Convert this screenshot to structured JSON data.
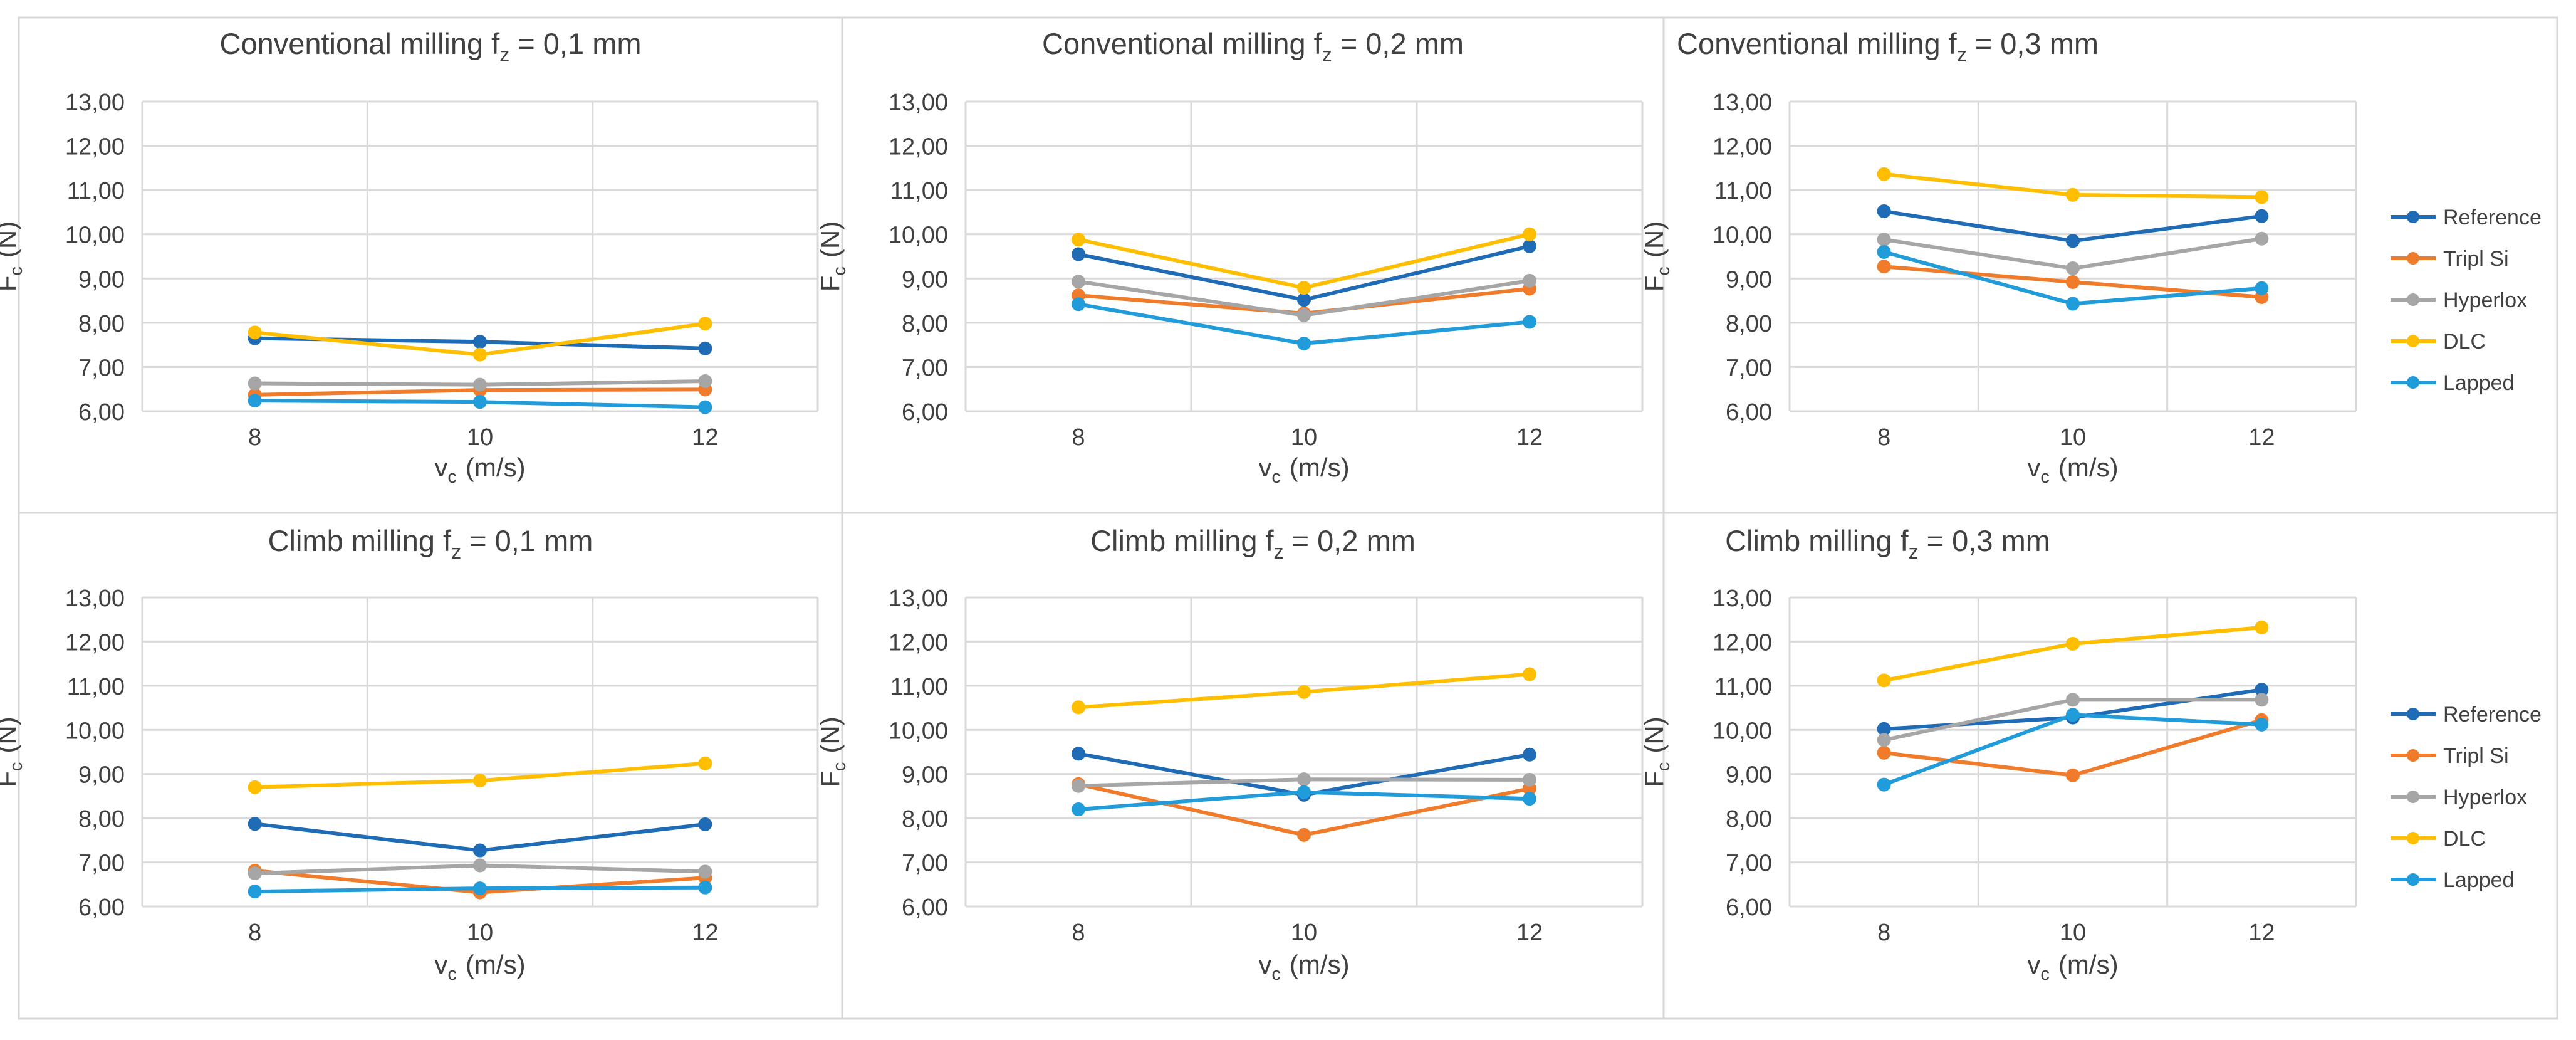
{
  "figure": {
    "legend_position": "right",
    "colors": {
      "Reference": "#1F6BB5",
      "Tripl Si": "#F07B2A",
      "Hyperlox": "#A6A6A6",
      "DLC": "#FFBE00",
      "Lapped": "#219CDA",
      "grid": "#D9D9D9",
      "panel_border": "#D6D6D6",
      "text": "#404040"
    }
  },
  "chart_data": [
    {
      "type": "line",
      "title_main": "Conventional milling f",
      "title_sub": "z",
      "title_value": " = 0,1 mm",
      "categories": [
        "8",
        "10",
        "12"
      ],
      "ylim": [
        6,
        13
      ],
      "yticks": [
        "6,00",
        "7,00",
        "8,00",
        "9,00",
        "10,00",
        "11,00",
        "12,00",
        "13,00"
      ],
      "ylabel_main": "F",
      "ylabel_sub": "c",
      "ylabel_unit": "(N)",
      "xlabel_main": "v",
      "xlabel_sub": "c",
      "xlabel_unit": "(m/s)",
      "legend": [],
      "series": [
        {
          "name": "Reference",
          "values": [
            7.65,
            7.57,
            7.42
          ]
        },
        {
          "name": "Tripl Si",
          "values": [
            6.37,
            6.48,
            6.49
          ]
        },
        {
          "name": "Hyperlox",
          "values": [
            6.63,
            6.6,
            6.68
          ]
        },
        {
          "name": "DLC",
          "values": [
            7.78,
            7.28,
            7.98
          ]
        },
        {
          "name": "Lapped",
          "values": [
            6.24,
            6.21,
            6.09
          ]
        }
      ]
    },
    {
      "type": "line",
      "title_main": "Conventional milling f",
      "title_sub": "z",
      "title_value": " = 0,2 mm",
      "categories": [
        "8",
        "10",
        "12"
      ],
      "ylim": [
        6,
        13
      ],
      "yticks": [
        "6,00",
        "7,00",
        "8,00",
        "9,00",
        "10,00",
        "11,00",
        "12,00",
        "13,00"
      ],
      "ylabel_main": "F",
      "ylabel_sub": "c",
      "ylabel_unit": "(N)",
      "xlabel_main": "v",
      "xlabel_sub": "c",
      "xlabel_unit": "(m/s)",
      "legend": [],
      "series": [
        {
          "name": "Reference",
          "values": [
            9.55,
            8.52,
            9.73
          ]
        },
        {
          "name": "Tripl Si",
          "values": [
            8.62,
            8.21,
            8.77
          ]
        },
        {
          "name": "Hyperlox",
          "values": [
            8.93,
            8.17,
            8.95
          ]
        },
        {
          "name": "DLC",
          "values": [
            9.88,
            8.79,
            10.0
          ]
        },
        {
          "name": "Lapped",
          "values": [
            8.42,
            7.53,
            8.02
          ]
        }
      ]
    },
    {
      "type": "line",
      "title_main": "Conventional milling f",
      "title_sub": "z",
      "title_value": " = 0,3 mm",
      "categories": [
        "8",
        "10",
        "12"
      ],
      "ylim": [
        6,
        13
      ],
      "yticks": [
        "6,00",
        "7,00",
        "8,00",
        "9,00",
        "10,00",
        "11,00",
        "12,00",
        "13,00"
      ],
      "ylabel_main": "F",
      "ylabel_sub": "c",
      "ylabel_unit": "(N)",
      "xlabel_main": "v",
      "xlabel_sub": "c",
      "xlabel_unit": "(m/s)",
      "legend": [
        "Reference",
        "Tripl Si",
        "Hyperlox",
        "DLC",
        "Lapped"
      ],
      "series": [
        {
          "name": "Reference",
          "values": [
            10.52,
            9.85,
            10.41
          ]
        },
        {
          "name": "Tripl Si",
          "values": [
            9.27,
            8.92,
            8.58
          ]
        },
        {
          "name": "Hyperlox",
          "values": [
            9.88,
            9.23,
            9.9
          ]
        },
        {
          "name": "DLC",
          "values": [
            11.36,
            10.89,
            10.84
          ]
        },
        {
          "name": "Lapped",
          "values": [
            9.6,
            8.43,
            8.78
          ]
        }
      ]
    },
    {
      "type": "line",
      "title_main": "Climb milling f",
      "title_sub": "z",
      "title_value": " = 0,1 mm",
      "categories": [
        "8",
        "10",
        "12"
      ],
      "ylim": [
        6,
        13
      ],
      "yticks": [
        "6,00",
        "7,00",
        "8,00",
        "9,00",
        "10,00",
        "11,00",
        "12,00",
        "13,00"
      ],
      "ylabel_main": "F",
      "ylabel_sub": "c",
      "ylabel_unit": "(N)",
      "xlabel_main": "v",
      "xlabel_sub": "c",
      "xlabel_unit": "(m/s)",
      "legend": [],
      "series": [
        {
          "name": "Reference",
          "values": [
            7.87,
            7.27,
            7.86
          ]
        },
        {
          "name": "Tripl Si",
          "values": [
            6.81,
            6.32,
            6.65
          ]
        },
        {
          "name": "Hyperlox",
          "values": [
            6.75,
            6.93,
            6.79
          ]
        },
        {
          "name": "DLC",
          "values": [
            8.7,
            8.85,
            9.24
          ]
        },
        {
          "name": "Lapped",
          "values": [
            6.34,
            6.41,
            6.43
          ]
        }
      ]
    },
    {
      "type": "line",
      "title_main": "Climb milling f",
      "title_sub": "z",
      "title_value": " = 0,2 mm",
      "categories": [
        "8",
        "10",
        "12"
      ],
      "ylim": [
        6,
        13
      ],
      "yticks": [
        "6,00",
        "7,00",
        "8,00",
        "9,00",
        "10,00",
        "11,00",
        "12,00",
        "13,00"
      ],
      "ylabel_main": "F",
      "ylabel_sub": "c",
      "ylabel_unit": "(N)",
      "xlabel_main": "v",
      "xlabel_sub": "c",
      "xlabel_unit": "(m/s)",
      "legend": [],
      "series": [
        {
          "name": "Reference",
          "values": [
            9.46,
            8.53,
            9.44
          ]
        },
        {
          "name": "Tripl Si",
          "values": [
            8.77,
            7.62,
            8.67
          ]
        },
        {
          "name": "Hyperlox",
          "values": [
            8.73,
            8.88,
            8.87
          ]
        },
        {
          "name": "DLC",
          "values": [
            10.51,
            10.86,
            11.26
          ]
        },
        {
          "name": "Lapped",
          "values": [
            8.2,
            8.59,
            8.44
          ]
        }
      ]
    },
    {
      "type": "line",
      "title_main": "Climb milling f",
      "title_sub": "z",
      "title_value": " = 0,3 mm",
      "categories": [
        "8",
        "10",
        "12"
      ],
      "ylim": [
        6,
        13
      ],
      "yticks": [
        "6,00",
        "7,00",
        "8,00",
        "9,00",
        "10,00",
        "11,00",
        "12,00",
        "13,00"
      ],
      "ylabel_main": "F",
      "ylabel_sub": "c",
      "ylabel_unit": "(N)",
      "xlabel_main": "v",
      "xlabel_sub": "c",
      "xlabel_unit": "(m/s)",
      "legend": [
        "Reference",
        "Tripl Si",
        "Hyperlox",
        "DLC",
        "Lapped"
      ],
      "series": [
        {
          "name": "Reference",
          "values": [
            10.02,
            10.28,
            10.91
          ]
        },
        {
          "name": "Tripl Si",
          "values": [
            9.48,
            8.97,
            10.22
          ]
        },
        {
          "name": "Hyperlox",
          "values": [
            9.77,
            10.68,
            10.68
          ]
        },
        {
          "name": "DLC",
          "values": [
            11.12,
            11.95,
            12.32
          ]
        },
        {
          "name": "Lapped",
          "values": [
            8.76,
            10.34,
            10.12
          ]
        }
      ]
    }
  ]
}
